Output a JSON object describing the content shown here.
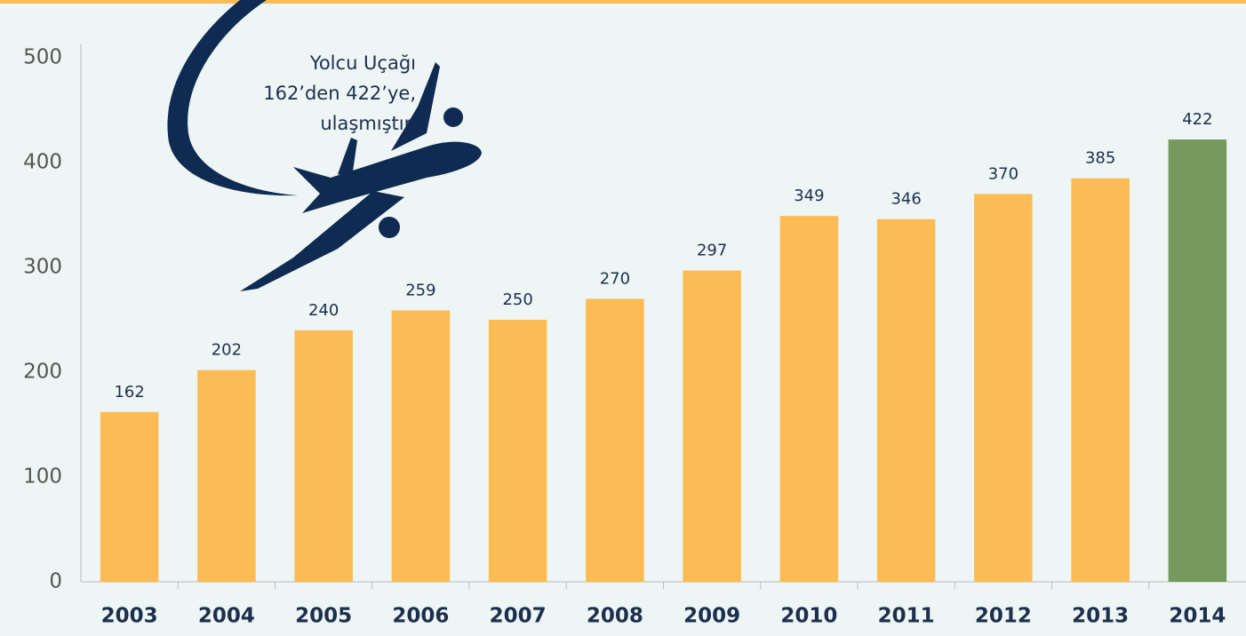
{
  "chart_data": {
    "type": "bar",
    "categories": [
      "2003",
      "2004",
      "2005",
      "2006",
      "2007",
      "2008",
      "2009",
      "2010",
      "2011",
      "2012",
      "2013",
      "2014"
    ],
    "values": [
      162,
      202,
      240,
      259,
      250,
      270,
      297,
      349,
      346,
      370,
      385,
      422
    ],
    "colors": [
      "#fdbb55",
      "#fdbb55",
      "#fdbb55",
      "#fdbb55",
      "#fdbb55",
      "#fdbb55",
      "#fdbb55",
      "#fdbb55",
      "#fdbb55",
      "#fdbb55",
      "#fdbb55",
      "#769a5e"
    ],
    "ylim": [
      0,
      500
    ],
    "yticks": [
      0,
      100,
      200,
      300,
      400,
      500
    ],
    "grid": false,
    "annotation": [
      "Yolcu Uçağı",
      "162’den 422’ye,",
      "ulaşmıştır."
    ]
  }
}
